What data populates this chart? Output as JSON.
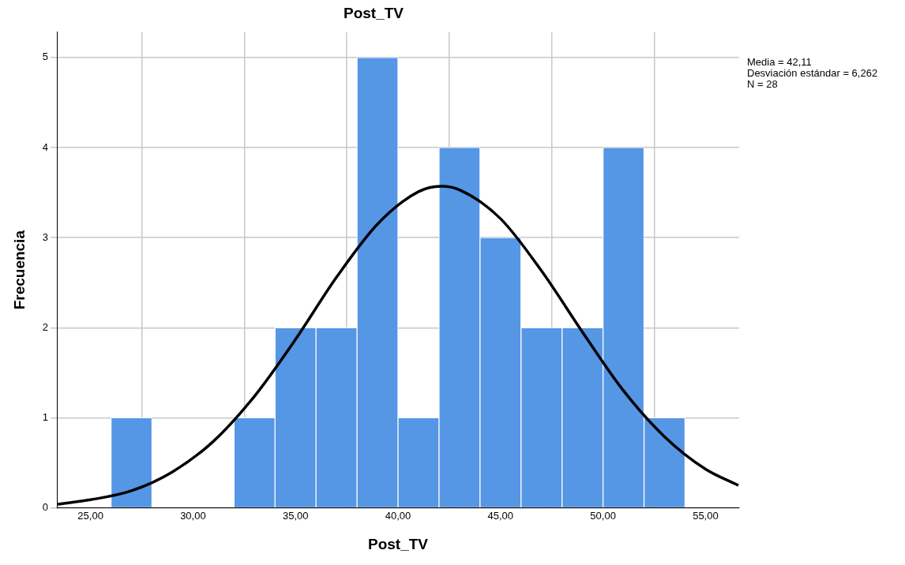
{
  "chart_data": {
    "type": "histogram",
    "title": "Post_TV",
    "xlabel": "Post_TV",
    "ylabel": "Frecuencia",
    "bins": [
      26,
      28,
      30,
      32,
      34,
      36,
      38,
      40,
      42,
      44,
      46,
      48,
      50,
      52,
      54
    ],
    "values": [
      1,
      0,
      0,
      1,
      2,
      2,
      5,
      1,
      4,
      3,
      2,
      2,
      4,
      1
    ],
    "color": "#5596e5",
    "series": [
      {
        "type": "line",
        "color": "#000000",
        "x": [
          23.4,
          25,
          27,
          29,
          31,
          33,
          35,
          37,
          39,
          41,
          42.11,
          43,
          45,
          47,
          49,
          51,
          53,
          55,
          56.6
        ],
        "values": [
          0.04,
          0.09,
          0.19,
          0.4,
          0.74,
          1.24,
          1.87,
          2.56,
          3.15,
          3.51,
          3.57,
          3.53,
          3.21,
          2.63,
          1.95,
          1.3,
          0.79,
          0.43,
          0.25
        ]
      }
    ],
    "xlim": [
      23.36,
      56.64
    ],
    "xticks": [
      {
        "value": 25,
        "label": "25,00"
      },
      {
        "value": 30,
        "label": "30,00"
      },
      {
        "value": 35,
        "label": "35,00"
      },
      {
        "value": 40,
        "label": "40,00"
      },
      {
        "value": 45,
        "label": "45,00"
      },
      {
        "value": 50,
        "label": "50,00"
      },
      {
        "value": 55,
        "label": "55,00"
      }
    ],
    "ylim": [
      0,
      5.28
    ],
    "yticks": [
      0,
      1,
      2,
      3,
      4,
      5
    ],
    "grid": true,
    "annotations": [
      "Media = 42,11",
      "Desviación estándar = 6,262",
      "N = 28"
    ]
  }
}
